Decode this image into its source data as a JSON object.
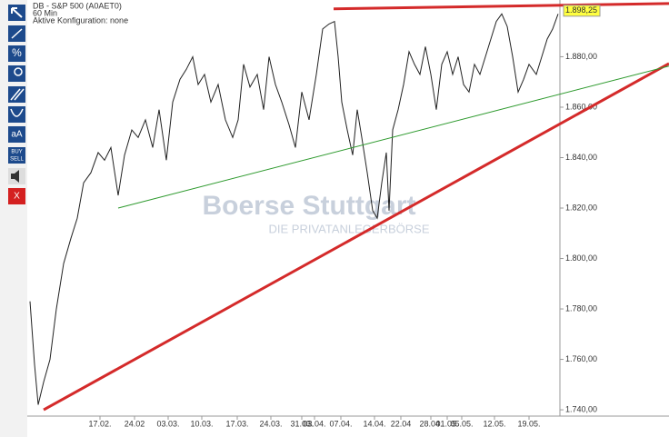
{
  "toolbar": [
    "%",
    "aA",
    "BUY",
    "SELL",
    "X"
  ],
  "chart_data": {
    "type": "line",
    "title": "DB - S&P 500 (A0AET0)",
    "subtitle": "60 Min",
    "annotations": [
      "Aktive Konfiguration: none",
      "Boerse Stuttgart",
      "DIE PRIVATANLEGERBÖRSE"
    ],
    "last_price": {
      "value": 1898.25,
      "label": "1.898,25"
    },
    "xlim": [
      0,
      585
    ],
    "ylim": [
      1730.3,
      1902.5
    ],
    "xticks": [
      {
        "value": 80,
        "label": "17.02."
      },
      {
        "value": 118,
        "label": "24.02"
      },
      {
        "value": 155,
        "label": "03.03."
      },
      {
        "value": 192,
        "label": "10.03."
      },
      {
        "value": 231,
        "label": "17.03."
      },
      {
        "value": 268,
        "label": "24.03."
      },
      {
        "value": 302,
        "label": "31.03."
      },
      {
        "value": 316,
        "label": "03.04."
      },
      {
        "value": 345,
        "label": "07.04."
      },
      {
        "value": 382,
        "label": "14.04."
      },
      {
        "value": 411,
        "label": "22.04"
      },
      {
        "value": 444,
        "label": "28.04."
      },
      {
        "value": 462,
        "label": "01.05."
      },
      {
        "value": 478,
        "label": "05.05."
      },
      {
        "value": 514,
        "label": "12.05."
      },
      {
        "value": 552,
        "label": "19.05."
      }
    ],
    "yticks": [
      {
        "value": 1740,
        "label": "1.740,00"
      },
      {
        "value": 1760,
        "label": "1.760,00"
      },
      {
        "value": 1780,
        "label": "1.780,00"
      },
      {
        "value": 1800,
        "label": "1.800,00"
      },
      {
        "value": 1820,
        "label": "1.820,00"
      },
      {
        "value": 1840,
        "label": "1.840,00"
      },
      {
        "value": 1860,
        "label": "1.860,00"
      },
      {
        "value": 1880,
        "label": "1.880,00"
      }
    ],
    "series": [
      {
        "name": "S&P 500",
        "color": "#222222",
        "x": [
          3,
          8,
          12,
          18,
          25,
          32,
          40,
          48,
          55,
          62,
          70,
          78,
          85,
          92,
          100,
          107,
          115,
          122,
          130,
          138,
          145,
          153,
          160,
          168,
          175,
          182,
          188,
          195,
          202,
          210,
          218,
          226,
          232,
          238,
          245,
          253,
          260,
          266,
          273,
          280,
          288,
          295,
          302,
          310,
          318,
          325,
          332,
          338,
          342,
          346,
          352,
          358,
          363,
          368,
          374,
          380,
          385,
          390,
          395,
          398,
          402,
          408,
          414,
          420,
          426,
          432,
          438,
          444,
          450,
          456,
          462,
          468,
          474,
          480,
          486,
          492,
          498,
          504,
          510,
          516,
          522,
          528,
          534,
          540,
          546,
          552,
          560,
          566,
          572,
          578,
          584
        ],
        "values": [
          1783,
          1758,
          1742,
          1751,
          1760,
          1780,
          1798,
          1808,
          1816,
          1830,
          1834,
          1842,
          1839,
          1844,
          1825,
          1841,
          1851,
          1848,
          1855,
          1844,
          1859,
          1839,
          1862,
          1871,
          1875,
          1880,
          1869,
          1873,
          1862,
          1869,
          1855,
          1848,
          1855,
          1877,
          1868,
          1873,
          1859,
          1880,
          1869,
          1862,
          1853,
          1844,
          1866,
          1855,
          1873,
          1891,
          1893,
          1894,
          1880,
          1862,
          1851,
          1841,
          1859,
          1848,
          1834,
          1819,
          1816,
          1830,
          1842,
          1819,
          1851,
          1859,
          1869,
          1882,
          1877,
          1873,
          1884,
          1873,
          1859,
          1877,
          1882,
          1873,
          1880,
          1869,
          1866,
          1877,
          1873,
          1880,
          1887,
          1894,
          1897,
          1892,
          1880,
          1866,
          1871,
          1877,
          1873,
          1880,
          1887,
          1891,
          1897
        ]
      }
    ],
    "trendlines": [
      {
        "color": "#d42a2a",
        "x": [
          18,
          706
        ],
        "values": [
          1740,
          1877.3
        ]
      },
      {
        "color": "#d42a2a",
        "x": [
          337,
          706
        ],
        "values": [
          1899,
          1901.1
        ]
      },
      {
        "color": "#2e9a2e",
        "x": [
          100,
          706
        ],
        "values": [
          1820,
          1876.3
        ]
      }
    ]
  }
}
